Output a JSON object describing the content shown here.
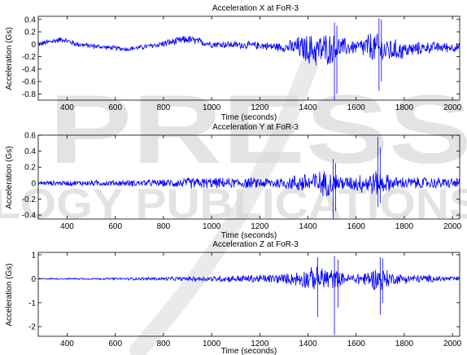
{
  "watermark": {
    "line1": "PRESS",
    "line2": "LOGY PUBLICATIONS"
  },
  "chart_data": [
    {
      "type": "line",
      "title": "Acceleration X at FoR-3",
      "xlabel": "Time (seconds)",
      "ylabel": "Acceleration (Gs)",
      "xlim": [
        280,
        2030
      ],
      "ylim": [
        -0.9,
        0.45
      ],
      "xticks": [
        400,
        600,
        800,
        1000,
        1200,
        1400,
        1600,
        1800,
        2000
      ],
      "yticks": [
        -0.8,
        -0.6,
        -0.4,
        -0.2,
        0,
        0.2,
        0.4
      ],
      "ytick_labels": [
        "-0.8",
        "-0.6",
        "-0.4",
        "-0.2",
        "0",
        "0.2",
        "0.4"
      ],
      "series_color": "#0000ff",
      "envelope": [
        {
          "x": 280,
          "center": 0.0,
          "amp": 0.05
        },
        {
          "x": 380,
          "center": 0.08,
          "amp": 0.05
        },
        {
          "x": 440,
          "center": 0.0,
          "amp": 0.05
        },
        {
          "x": 560,
          "center": -0.05,
          "amp": 0.04
        },
        {
          "x": 650,
          "center": -0.08,
          "amp": 0.04
        },
        {
          "x": 760,
          "center": -0.02,
          "amp": 0.05
        },
        {
          "x": 900,
          "center": 0.08,
          "amp": 0.08
        },
        {
          "x": 1000,
          "center": 0.0,
          "amp": 0.06
        },
        {
          "x": 1200,
          "center": -0.02,
          "amp": 0.07
        },
        {
          "x": 1300,
          "center": -0.05,
          "amp": 0.08
        },
        {
          "x": 1360,
          "center": -0.05,
          "amp": 0.2
        },
        {
          "x": 1420,
          "center": -0.1,
          "amp": 0.3
        },
        {
          "x": 1480,
          "center": -0.08,
          "amp": 0.3
        },
        {
          "x": 1540,
          "center": -0.05,
          "amp": 0.18
        },
        {
          "x": 1600,
          "center": -0.05,
          "amp": 0.12
        },
        {
          "x": 1660,
          "center": -0.05,
          "amp": 0.28
        },
        {
          "x": 1720,
          "center": -0.1,
          "amp": 0.25
        },
        {
          "x": 1800,
          "center": -0.1,
          "amp": 0.15
        },
        {
          "x": 1900,
          "center": -0.05,
          "amp": 0.1
        },
        {
          "x": 2030,
          "center": -0.05,
          "amp": 0.08
        }
      ],
      "spikes": [
        {
          "x": 1510,
          "min": -0.9,
          "max": 0.35
        },
        {
          "x": 1520,
          "min": -0.8,
          "max": 0.3
        },
        {
          "x": 1695,
          "min": -0.75,
          "max": 0.42
        },
        {
          "x": 1705,
          "min": -0.6,
          "max": 0.4
        }
      ]
    },
    {
      "type": "line",
      "title": "Acceleration Y at FoR-3",
      "xlabel": "Time (seconds)",
      "ylabel": "Acceleration (Gs)",
      "xlim": [
        280,
        2030
      ],
      "ylim": [
        -0.45,
        0.6
      ],
      "xticks": [
        400,
        600,
        800,
        1000,
        1200,
        1400,
        1600,
        1800,
        2000
      ],
      "yticks": [
        -0.4,
        -0.2,
        0,
        0.2,
        0.4,
        0.6
      ],
      "ytick_labels": [
        "-0.4",
        "-0.2",
        "0",
        "0.2",
        "0.4",
        "0.6"
      ],
      "series_color": "#0000ff",
      "envelope": [
        {
          "x": 280,
          "center": 0.0,
          "amp": 0.03
        },
        {
          "x": 500,
          "center": 0.0,
          "amp": 0.04
        },
        {
          "x": 800,
          "center": 0.0,
          "amp": 0.05
        },
        {
          "x": 920,
          "center": 0.0,
          "amp": 0.08
        },
        {
          "x": 1100,
          "center": 0.0,
          "amp": 0.07
        },
        {
          "x": 1300,
          "center": 0.0,
          "amp": 0.08
        },
        {
          "x": 1400,
          "center": 0.0,
          "amp": 0.16
        },
        {
          "x": 1480,
          "center": 0.0,
          "amp": 0.18
        },
        {
          "x": 1560,
          "center": 0.0,
          "amp": 0.09
        },
        {
          "x": 1680,
          "center": 0.0,
          "amp": 0.18
        },
        {
          "x": 1760,
          "center": 0.0,
          "amp": 0.09
        },
        {
          "x": 2030,
          "center": 0.0,
          "amp": 0.07
        }
      ],
      "spikes": [
        {
          "x": 1505,
          "min": -0.45,
          "max": 0.3
        },
        {
          "x": 1515,
          "min": -0.35,
          "max": 0.25
        },
        {
          "x": 1690,
          "min": -0.3,
          "max": 0.58
        },
        {
          "x": 1700,
          "min": -0.25,
          "max": 0.45
        }
      ]
    },
    {
      "type": "line",
      "title": "Acceleration Z at FoR-3",
      "xlabel": "Time (seconds)",
      "ylabel": "Acceleration (Gs)",
      "xlim": [
        280,
        2030
      ],
      "ylim": [
        -2.4,
        1.1
      ],
      "xticks": [
        400,
        600,
        800,
        1000,
        1200,
        1400,
        1600,
        1800,
        2000
      ],
      "yticks": [
        -2,
        -1,
        0,
        1
      ],
      "ytick_labels": [
        "-2",
        "-1",
        "0",
        "1"
      ],
      "series_color": "#0000ff",
      "envelope": [
        {
          "x": 280,
          "center": 0.0,
          "amp": 0.03
        },
        {
          "x": 600,
          "center": 0.0,
          "amp": 0.05
        },
        {
          "x": 900,
          "center": 0.0,
          "amp": 0.1
        },
        {
          "x": 1200,
          "center": 0.0,
          "amp": 0.2
        },
        {
          "x": 1320,
          "center": 0.0,
          "amp": 0.25
        },
        {
          "x": 1400,
          "center": 0.0,
          "amp": 0.5
        },
        {
          "x": 1480,
          "center": 0.0,
          "amp": 0.6
        },
        {
          "x": 1560,
          "center": 0.0,
          "amp": 0.2
        },
        {
          "x": 1640,
          "center": 0.0,
          "amp": 0.35
        },
        {
          "x": 1700,
          "center": 0.0,
          "amp": 0.6
        },
        {
          "x": 1760,
          "center": 0.0,
          "amp": 0.25
        },
        {
          "x": 2030,
          "center": 0.0,
          "amp": 0.1
        }
      ],
      "spikes": [
        {
          "x": 1440,
          "min": -1.6,
          "max": 0.9
        },
        {
          "x": 1510,
          "min": -2.35,
          "max": 0.95
        },
        {
          "x": 1525,
          "min": -1.2,
          "max": 0.8
        },
        {
          "x": 1700,
          "min": -1.5,
          "max": 0.9
        },
        {
          "x": 1710,
          "min": -1.0,
          "max": 0.85
        }
      ]
    }
  ]
}
